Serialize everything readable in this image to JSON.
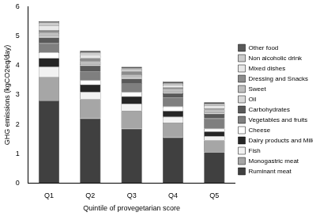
{
  "chart_data": {
    "type": "bar",
    "stacked": true,
    "legend": "right",
    "grid": false,
    "x_label": "Quintile of provegetarian score",
    "y_label": "GHG emissions (kgCO2eq/day)",
    "categories": [
      "Q1",
      "Q2",
      "Q3",
      "Q4",
      "Q5"
    ],
    "ylim": [
      0,
      6
    ],
    "yticks": [
      0,
      1,
      2,
      3,
      4,
      5,
      6
    ],
    "series": [
      {
        "name": "Ruminant meat",
        "color": "#404040",
        "values": [
          2.8,
          2.2,
          1.85,
          1.55,
          1.05
        ]
      },
      {
        "name": "Monogastric meat",
        "color": "#a6a6a6",
        "values": [
          0.8,
          0.65,
          0.6,
          0.5,
          0.4
        ]
      },
      {
        "name": "Fish",
        "color": "#f2f2f2",
        "values": [
          0.35,
          0.25,
          0.25,
          0.2,
          0.15
        ]
      },
      {
        "name": "Dairy products and Milk",
        "color": "#262626",
        "values": [
          0.3,
          0.25,
          0.25,
          0.2,
          0.15
        ]
      },
      {
        "name": "Cheese",
        "color": "#ffffff",
        "values": [
          0.2,
          0.15,
          0.15,
          0.15,
          0.1
        ]
      },
      {
        "name": "Vegetables and fruits",
        "color": "#7f7f7f",
        "values": [
          0.3,
          0.3,
          0.3,
          0.3,
          0.35
        ]
      },
      {
        "name": "Carbohydrates",
        "color": "#595959",
        "values": [
          0.2,
          0.2,
          0.15,
          0.15,
          0.15
        ]
      },
      {
        "name": "Oil",
        "color": "#d9d9d9",
        "values": [
          0.05,
          0.05,
          0.05,
          0.05,
          0.05
        ]
      },
      {
        "name": "Sweet",
        "color": "#bfbfbf",
        "values": [
          0.1,
          0.1,
          0.1,
          0.1,
          0.1
        ]
      },
      {
        "name": "Dressing and Snacks",
        "color": "#8c8c8c",
        "values": [
          0.1,
          0.1,
          0.1,
          0.05,
          0.05
        ]
      },
      {
        "name": "Mixed dishes",
        "color": "#e8e8e8",
        "values": [
          0.15,
          0.1,
          0.05,
          0.1,
          0.1
        ]
      },
      {
        "name": "Non alcoholic drink",
        "color": "#cccccc",
        "values": [
          0.1,
          0.1,
          0.05,
          0.05,
          0.05
        ]
      },
      {
        "name": "Other food",
        "color": "#595959",
        "values": [
          0.05,
          0.05,
          0.05,
          0.05,
          0.05
        ]
      }
    ]
  }
}
